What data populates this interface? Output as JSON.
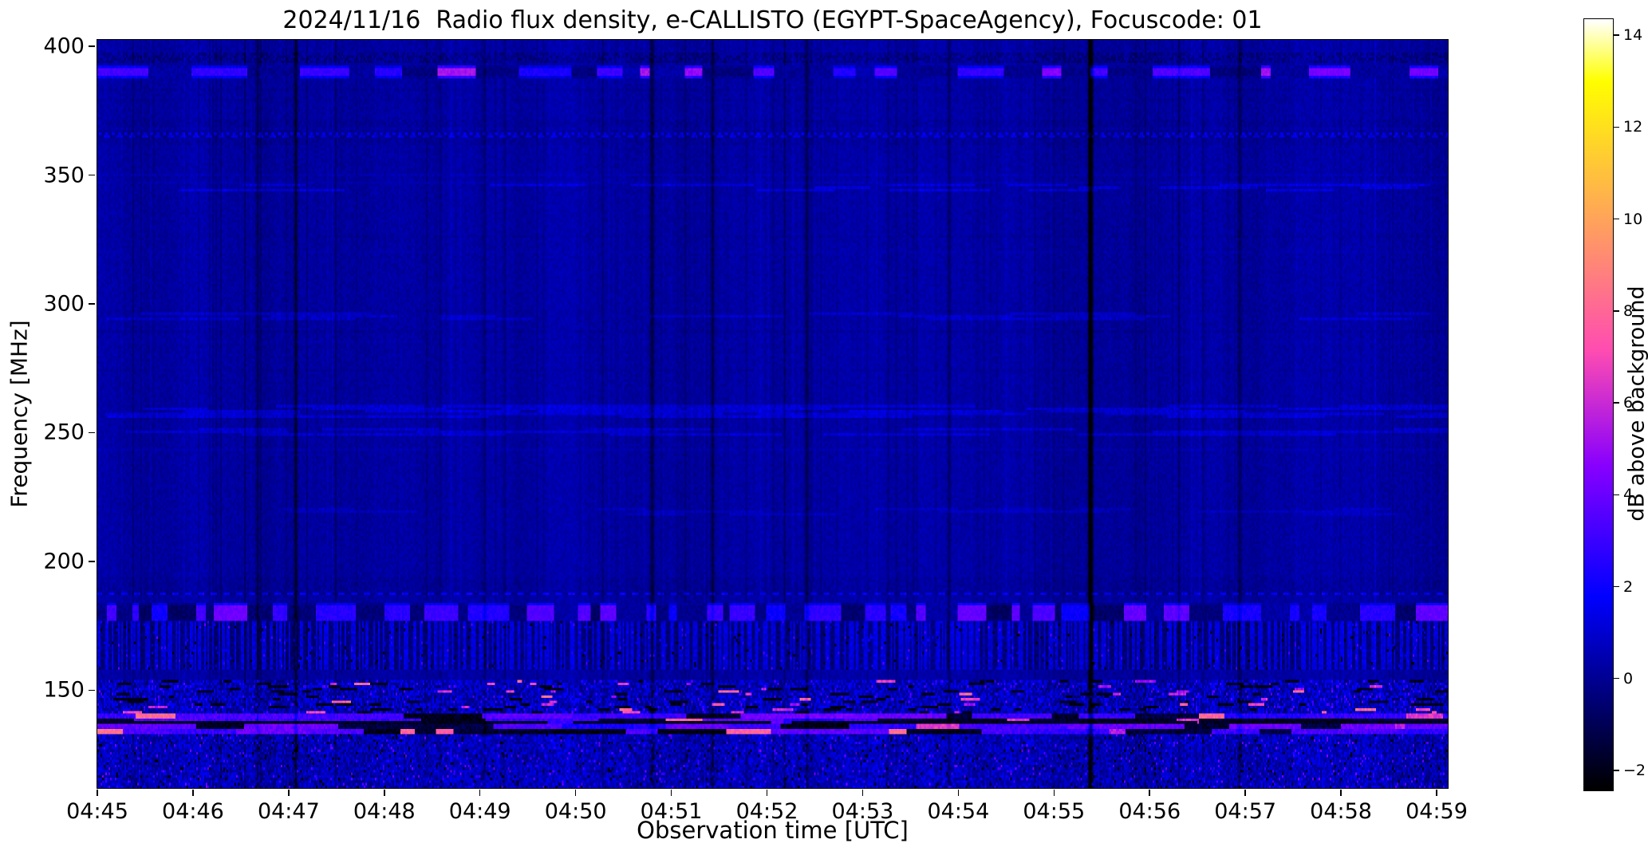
{
  "chart_data": {
    "type": "heatmap",
    "title": "2024/11/16  Radio flux density, e-CALLISTO (EGYPT-SpaceAgency), Focuscode: 01",
    "xlabel": "Observation time [UTC]",
    "ylabel": "Frequency [MHz]",
    "colorbar_label": "dB above background",
    "colormap": "gnuplot2",
    "legend": "none",
    "grid": false,
    "x_ticks": [
      "04:45",
      "04:46",
      "04:47",
      "04:48",
      "04:49",
      "04:50",
      "04:51",
      "04:52",
      "04:53",
      "04:54",
      "04:55",
      "04:56",
      "04:57",
      "04:58",
      "04:59"
    ],
    "x_range_seconds": 847,
    "y_ticks": [
      400,
      350,
      300,
      250,
      200,
      150
    ],
    "freq_range_mhz": [
      112,
      402.5
    ],
    "value_range_db": [
      -2.4,
      14.35
    ],
    "background_level_db": 0.2,
    "colorbar_ticks": [
      {
        "v": 14,
        "label": "14"
      },
      {
        "v": 12,
        "label": "12"
      },
      {
        "v": 10,
        "label": "10"
      },
      {
        "v": 8,
        "label": "8"
      },
      {
        "v": 6,
        "label": "6"
      },
      {
        "v": 4,
        "label": "4"
      },
      {
        "v": 2,
        "label": "2"
      },
      {
        "v": 0,
        "label": "0"
      },
      {
        "v": -2,
        "label": "−2"
      }
    ],
    "bands": [
      {
        "name": "rfi-390mhz-bursts",
        "f_lo": 388,
        "f_hi": 392.5,
        "style": "runs",
        "run_v": [
          2.2,
          5.5
        ],
        "gap_v": [
          -0.4,
          0.6
        ],
        "run_len": [
          6,
          38
        ],
        "gap_len": [
          5,
          42
        ]
      },
      {
        "name": "dark-row-396mhz",
        "f_lo": 394.5,
        "f_hi": 397,
        "style": "dark_row",
        "depth": 0.8,
        "coverage": 0.55
      },
      {
        "name": "texture-367mhz",
        "f_lo": 362,
        "f_hi": 371.5,
        "style": "dash_texture",
        "amp": 1.0,
        "row_p": 0.55
      },
      {
        "name": "faint-345mhz",
        "f_lo": 344,
        "f_hi": 346.5,
        "style": "sparse_runs",
        "v": 1.0,
        "run_len": [
          25,
          80
        ],
        "density": 0.22
      },
      {
        "name": "faint-295mhz",
        "f_lo": 294,
        "f_hi": 296,
        "style": "sparse_runs",
        "v": 0.7,
        "run_len": [
          30,
          90
        ],
        "density": 0.12
      },
      {
        "name": "faint-258mhz",
        "f_lo": 256,
        "f_hi": 260.5,
        "style": "sparse_runs",
        "v": 0.9,
        "run_len": [
          40,
          130
        ],
        "density": 0.28
      },
      {
        "name": "faint-250mhz",
        "f_lo": 249,
        "f_hi": 251.5,
        "style": "sparse_runs",
        "v": 0.8,
        "run_len": [
          40,
          110
        ],
        "density": 0.2
      },
      {
        "name": "faint-219mhz",
        "f_lo": 218,
        "f_hi": 220,
        "style": "sparse_runs",
        "v": 0.5,
        "run_len": [
          30,
          80
        ],
        "density": 0.1
      },
      {
        "name": "dashes-190mhz",
        "f_lo": 187.5,
        "f_hi": 193.5,
        "style": "dash_texture",
        "amp": 1.3,
        "row_p": 0.4
      },
      {
        "name": "bursts-180mhz",
        "f_lo": 176.5,
        "f_hi": 183,
        "style": "runs",
        "run_v": [
          1.8,
          4.2
        ],
        "gap_v": [
          -0.8,
          0.4
        ],
        "run_len": [
          4,
          26
        ],
        "gap_len": [
          3,
          22
        ]
      },
      {
        "name": "stripes-160-176mhz",
        "f_lo": 158,
        "f_hi": 176,
        "style": "vstripes",
        "amp": 1.25
      },
      {
        "name": "hot-speckle-145mhz",
        "f_lo": 141.5,
        "f_hi": 153.5,
        "style": "hot_speckle",
        "hot_v": [
          5,
          8.5
        ],
        "hot_p": 0.006
      },
      {
        "name": "streaks-136mhz",
        "f_lo": 132.5,
        "f_hi": 140.5,
        "style": "streaks",
        "dark_line_mhz": 136.6
      },
      {
        "name": "speckle-low",
        "f_lo": 112,
        "f_hi": 132.5,
        "style": "speckle"
      }
    ],
    "dark_columns": [
      {
        "t": 0.118,
        "w": 1,
        "d": 1.0
      },
      {
        "t": 0.146,
        "w": 2,
        "d": 1.4
      },
      {
        "t": 0.286,
        "w": 1,
        "d": 0.8
      },
      {
        "t": 0.41,
        "w": 2,
        "d": 1.5
      },
      {
        "t": 0.455,
        "w": 1,
        "d": 0.8
      },
      {
        "t": 0.525,
        "w": 2,
        "d": 1.3
      },
      {
        "t": 0.63,
        "w": 1,
        "d": 0.9
      },
      {
        "t": 0.735,
        "w": 3,
        "d": 3.2
      },
      {
        "t": 0.8,
        "w": 1,
        "d": 0.8
      },
      {
        "t": 0.845,
        "w": 2,
        "d": 1.0
      }
    ]
  }
}
